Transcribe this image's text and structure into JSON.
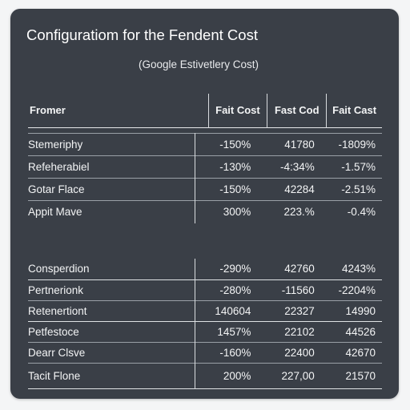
{
  "page": {
    "title": "Configuratiom for the Fendent Cost",
    "subtitle": "(Google Estivetlery Cost)"
  },
  "table": {
    "headers": [
      "Fromer",
      "Fait Cost",
      "Fast Cod",
      "Fait Cast"
    ],
    "group1": [
      {
        "name": "Stemeriphy",
        "v1": "-150%",
        "v2": "41780",
        "v3": "-1809%"
      },
      {
        "name": "Refeherabiel",
        "v1": "-130%",
        "v2": "-4:34%",
        "v3": "-1.57%"
      },
      {
        "name": "Gotar Flace",
        "v1": "-150%",
        "v2": "42284",
        "v3": "-2.51%"
      },
      {
        "name": "Appit Mave",
        "v1": "300%",
        "v2": "223.%",
        "v3": "-0.4%"
      }
    ],
    "group2": [
      {
        "name": "Consperdion",
        "v1": "-290%",
        "v2": "42760",
        "v3": "4243%"
      },
      {
        "name": "Pertnerionk",
        "v1": "-280%",
        "v2": "-11560",
        "v3": "-2204%"
      },
      {
        "name": "Retenertiont",
        "v1": "140604",
        "v2": "22327",
        "v3": "14990"
      },
      {
        "name": "Petfestoce",
        "v1": "1457%",
        "v2": "22102",
        "v3": "44526"
      },
      {
        "name": "Dearr Clsve",
        "v1": "-160%",
        "v2": "22400",
        "v3": "42670"
      },
      {
        "name": "Tacit Flone",
        "v1": "200%",
        "v2": "227,00",
        "v3": "21570"
      }
    ]
  },
  "colors": {
    "card_background": "#3a3f47",
    "page_background": "#f4f5f6",
    "text": "#f1f3f5",
    "row_divider": "#9aa0a7"
  }
}
